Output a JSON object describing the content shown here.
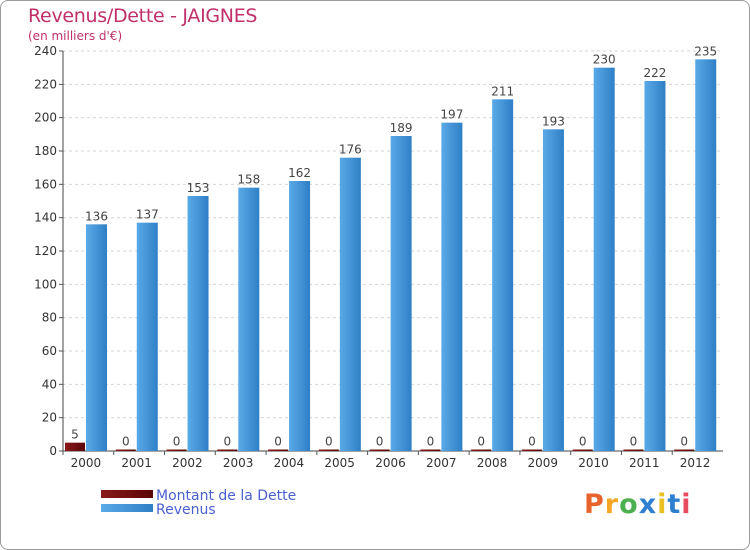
{
  "chart": {
    "title": "Revenus/Dette - JAIGNES",
    "subtitle": "(en milliers d'€)"
  },
  "logo": {
    "text": "Proxiti",
    "colors": [
      "#e8622c",
      "#f5a623",
      "#4caf50",
      "#2e7fd0",
      "#e8c022",
      "#2e7fd0",
      "#e84a5f"
    ]
  },
  "chart_data": {
    "type": "bar",
    "title": "Revenus/Dette - JAIGNES",
    "subtitle": "(en milliers d'€)",
    "categories": [
      "2000",
      "2001",
      "2002",
      "2003",
      "2004",
      "2005",
      "2006",
      "2007",
      "2008",
      "2009",
      "2010",
      "2011",
      "2012"
    ],
    "series": [
      {
        "name": "Montant de la Dette",
        "color": "#6b0a0a",
        "values": [
          5,
          0,
          0,
          0,
          0,
          0,
          0,
          0,
          0,
          0,
          0,
          0,
          0
        ]
      },
      {
        "name": "Revenus",
        "color": "#3d8fd8",
        "values": [
          136,
          137,
          153,
          158,
          162,
          176,
          189,
          197,
          211,
          193,
          230,
          222,
          235
        ]
      }
    ],
    "ylim": [
      0,
      240
    ],
    "yticks": [
      0,
      20,
      40,
      60,
      80,
      100,
      120,
      140,
      160,
      180,
      200,
      220,
      240
    ],
    "grid": true,
    "legend": "bottom-left",
    "xlabel": "",
    "ylabel": ""
  }
}
